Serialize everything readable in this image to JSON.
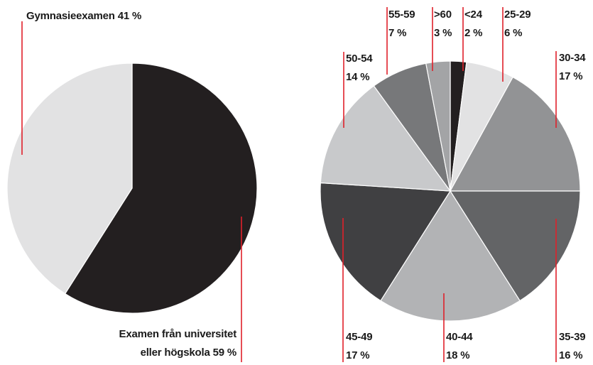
{
  "chart_data": [
    {
      "type": "pie",
      "title": "",
      "slices": [
        {
          "label": "Examen från universitet eller högskola",
          "line1": "Examen från universitet",
          "line2": "eller högskola 59 %",
          "value": 59,
          "color": "#231f20"
        },
        {
          "label": "Gymnasieexamen",
          "line1": "Gymnasieexamen 41 %",
          "value": 41,
          "color": "#e2e2e3"
        }
      ],
      "leader_color": "#e0202a"
    },
    {
      "type": "pie",
      "title": "",
      "slices": [
        {
          "label": "<24",
          "pct": "2 %",
          "value": 2,
          "color": "#231f20"
        },
        {
          "label": "25-29",
          "pct": "6 %",
          "value": 6,
          "color": "#e2e2e3"
        },
        {
          "label": "30-34",
          "pct": "17 %",
          "value": 17,
          "color": "#929395"
        },
        {
          "label": "35-39",
          "pct": "16 %",
          "value": 16,
          "color": "#636466"
        },
        {
          "label": "40-44",
          "pct": "18 %",
          "value": 18,
          "color": "#b2b3b5"
        },
        {
          "label": "45-49",
          "pct": "17 %",
          "value": 17,
          "color": "#404042"
        },
        {
          "label": "50-54",
          "pct": "14 %",
          "value": 14,
          "color": "#c8c9cb"
        },
        {
          "label": "55-59",
          "pct": "7 %",
          "value": 7,
          "color": "#77787a"
        },
        {
          "label": ">60",
          "pct": "3 %",
          "value": 3,
          "color": "#a3a4a6"
        }
      ],
      "leader_color": "#e0202a"
    }
  ]
}
